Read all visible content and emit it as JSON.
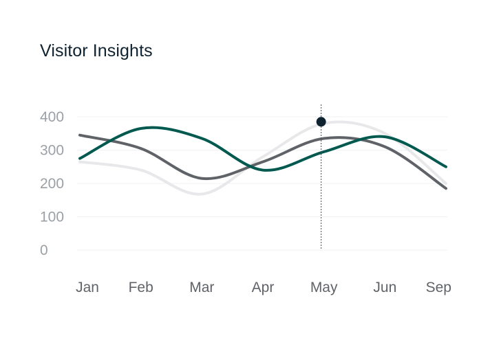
{
  "title": "Visitor Insights",
  "chart_data": {
    "type": "line",
    "title": "Visitor Insights",
    "xlabel": "",
    "ylabel": "",
    "categories": [
      "Jan",
      "Feb",
      "Mar",
      "Apr",
      "May",
      "Jun",
      "Sep"
    ],
    "y_ticks": [
      "400",
      "300",
      "200",
      "100",
      "0"
    ],
    "ylim": [
      0,
      400
    ],
    "grid": true,
    "legend": "none",
    "series": [
      {
        "color": "#00594f",
        "values": [
          275,
          365,
          335,
          240,
          295,
          340,
          250
        ]
      },
      {
        "color": "#5f6368",
        "values": [
          345,
          305,
          215,
          265,
          335,
          310,
          185
        ]
      },
      {
        "color": "#e8e8ea",
        "values": [
          265,
          240,
          168,
          280,
          380,
          350,
          200
        ]
      }
    ],
    "highlight": {
      "category": "May",
      "value": 385,
      "color": "#0f2230"
    }
  }
}
